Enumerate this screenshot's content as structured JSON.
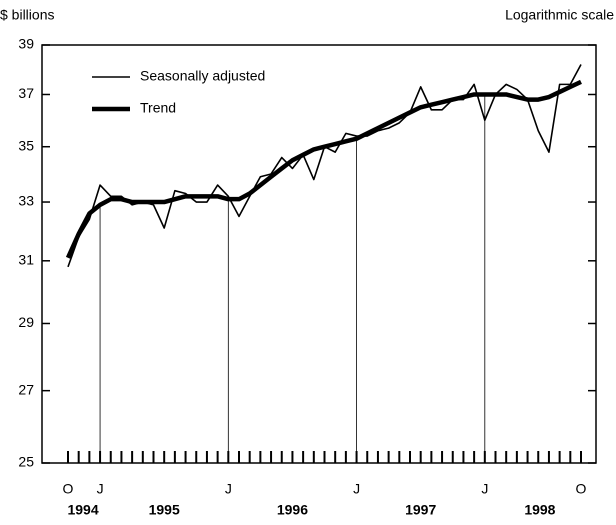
{
  "chart_data": {
    "type": "line",
    "y_unit_label": "$ billions",
    "scale_note": "Logarithmic scale",
    "log_scale": true,
    "categories": [
      "O",
      null,
      null,
      "J",
      null,
      null,
      null,
      null,
      null,
      null,
      null,
      null,
      null,
      null,
      null,
      "J",
      null,
      null,
      null,
      null,
      null,
      null,
      null,
      null,
      null,
      null,
      null,
      "J",
      null,
      null,
      null,
      null,
      null,
      null,
      null,
      null,
      null,
      null,
      null,
      "J",
      null,
      null,
      null,
      null,
      null,
      null,
      null,
      null,
      "O"
    ],
    "year_labels": [
      "1994",
      "1995",
      "1996",
      "1997",
      "1998"
    ],
    "series": [
      {
        "name": "Seasonally adjusted",
        "color": "#000000",
        "width": "thin",
        "values": [
          30.8,
          31.8,
          32.4,
          33.6,
          33.2,
          33.2,
          32.9,
          33.0,
          32.9,
          32.1,
          33.4,
          33.3,
          33.0,
          33.0,
          33.6,
          33.2,
          32.5,
          33.2,
          33.9,
          34.0,
          34.6,
          34.2,
          34.7,
          33.8,
          35.0,
          34.8,
          35.5,
          35.4,
          35.4,
          35.6,
          35.7,
          35.9,
          36.3,
          37.3,
          36.4,
          36.4,
          36.8,
          36.8,
          37.4,
          36.0,
          37.0,
          37.4,
          37.2,
          36.8,
          35.6,
          34.8,
          37.4,
          37.4,
          38.2
        ]
      },
      {
        "name": "Trend",
        "color": "#000000",
        "width": "thick",
        "values": [
          31.1,
          31.9,
          32.6,
          32.9,
          33.1,
          33.1,
          33.0,
          33.0,
          33.0,
          33.0,
          33.1,
          33.2,
          33.2,
          33.2,
          33.2,
          33.1,
          33.1,
          33.3,
          33.6,
          33.9,
          34.2,
          34.5,
          34.7,
          34.9,
          35.0,
          35.1,
          35.2,
          35.3,
          35.5,
          35.7,
          35.9,
          36.1,
          36.3,
          36.5,
          36.6,
          36.7,
          36.8,
          36.9,
          37.0,
          37.0,
          37.0,
          37.0,
          36.9,
          36.8,
          36.8,
          36.9,
          37.1,
          37.3,
          37.5
        ]
      }
    ],
    "ylim": [
      25,
      39
    ],
    "yticks": [
      25,
      27,
      29,
      31,
      33,
      35,
      37,
      39
    ],
    "legend": "top-left"
  }
}
